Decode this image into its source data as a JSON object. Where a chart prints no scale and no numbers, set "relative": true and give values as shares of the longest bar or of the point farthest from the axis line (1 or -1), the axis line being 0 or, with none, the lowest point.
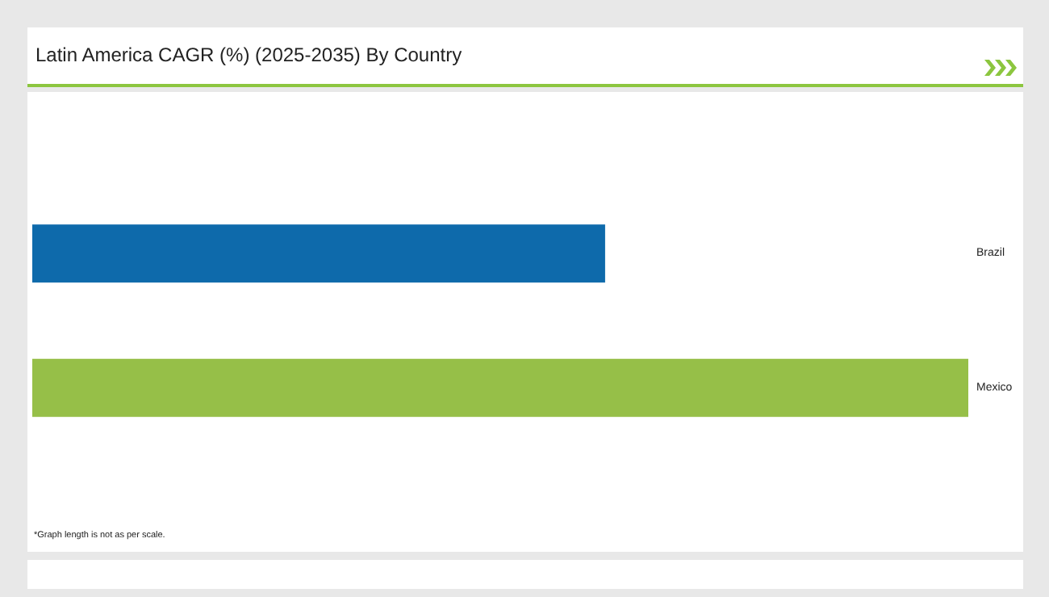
{
  "chart_data": {
    "type": "bar",
    "title": "Latin America CAGR (%) (2025-2035) By Country",
    "orientation": "horizontal",
    "relative": true,
    "categories": [
      "Brazil",
      "Mexico"
    ],
    "values": [
      0.612,
      1
    ],
    "colors": [
      "#0e6aab",
      "#96bf48"
    ],
    "annotations": [
      "*Graph length is not as per scale."
    ]
  }
}
